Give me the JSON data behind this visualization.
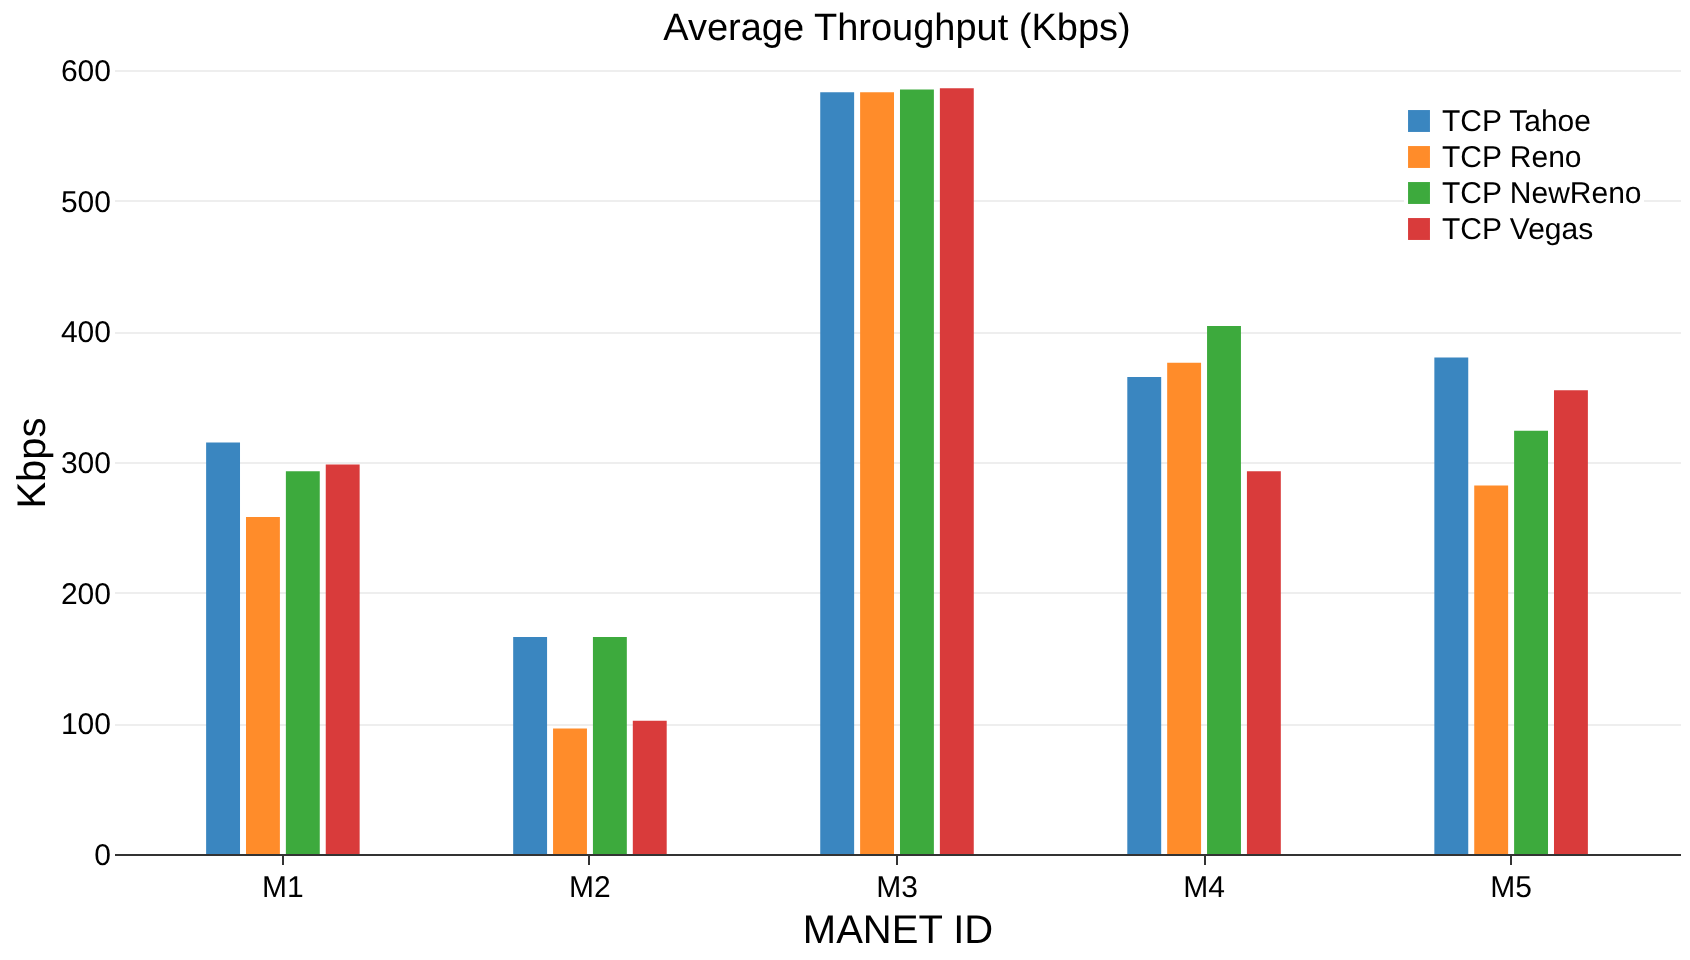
{
  "chart_data": {
    "type": "bar",
    "title": "Average Throughput (Kbps)",
    "xlabel": "MANET ID",
    "ylabel": "Kbps",
    "categories": [
      "M1",
      "M2",
      "M3",
      "M4",
      "M5"
    ],
    "series": [
      {
        "name": "TCP Tahoe",
        "color": "#3a86c0",
        "values": [
          315,
          166,
          583,
          365,
          380
        ]
      },
      {
        "name": "TCP Reno",
        "color": "#ff8c2a",
        "values": [
          258,
          96,
          583,
          376,
          282
        ]
      },
      {
        "name": "TCP NewReno",
        "color": "#3daa3d",
        "values": [
          293,
          166,
          585,
          404,
          324
        ]
      },
      {
        "name": "TCP Vegas",
        "color": "#d93b3b",
        "values": [
          298,
          102,
          586,
          293,
          355
        ]
      }
    ],
    "ylim": [
      0,
      600
    ],
    "yticks": [
      0,
      100,
      200,
      300,
      400,
      500,
      600
    ],
    "grid": "y",
    "legend": "top right"
  }
}
